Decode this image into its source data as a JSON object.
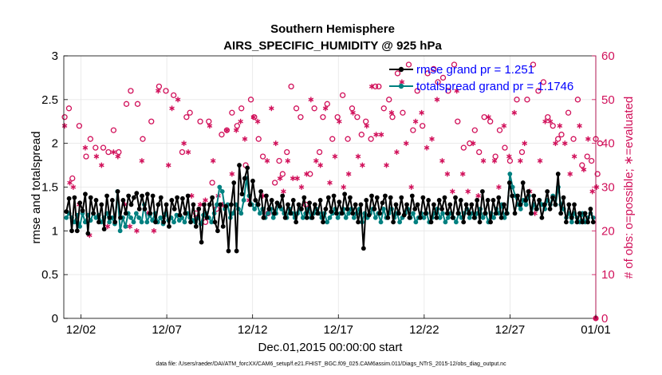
{
  "chart_data": {
    "type": "line",
    "title": "Southern Hemisphere",
    "subtitle": "AIRS_SPECIFIC_HUMIDITY @ 925 hPa",
    "xlabel": "Dec.01,2015 00:00:00 start",
    "ylabel": "rmse and totalspread",
    "y2label": "# of obs: o=possible; ∗=evaluated",
    "xlim": [
      0,
      31
    ],
    "ylim": [
      0,
      3
    ],
    "y2lim": [
      0,
      60
    ],
    "x_ticks": [
      {
        "x": 1,
        "label": "12/02"
      },
      {
        "x": 6,
        "label": "12/07"
      },
      {
        "x": 11,
        "label": "12/12"
      },
      {
        "x": 16,
        "label": "12/17"
      },
      {
        "x": 21,
        "label": "12/22"
      },
      {
        "x": 26,
        "label": "12/27"
      },
      {
        "x": 31,
        "label": "01/01"
      }
    ],
    "y_ticks": [
      "0",
      "0.5",
      "1",
      "1.5",
      "2",
      "2.5",
      "3"
    ],
    "y2_ticks": [
      "0",
      "10",
      "20",
      "30",
      "40",
      "50",
      "60"
    ],
    "legend_position": "top-right",
    "footnote": "data file: /Users/raeder/DAI/ATM_forcXX/CAM6_setup/f.e21.FHIST_BGC.f09_025.CAM6assim.011/Diags_NTrS_2015-12/obs_diag_output.nc",
    "series": [
      {
        "name": "rmse grand pr = 1.251",
        "axis": "left",
        "color": "#000000",
        "marker": "filled-circle",
        "values": [
          1.22,
          1.37,
          1.0,
          1.38,
          1.0,
          1.32,
          1.23,
          1.42,
          0.97,
          1.38,
          1.2,
          1.35,
          1.1,
          1.3,
          1.02,
          1.4,
          1.15,
          1.35,
          1.1,
          1.45,
          1.15,
          1.35,
          1.2,
          1.4,
          1.3,
          1.38,
          1.43,
          1.25,
          1.4,
          1.25,
          1.42,
          1.2,
          1.4,
          1.1,
          1.3,
          1.38,
          1.1,
          1.3,
          1.05,
          1.35,
          1.25,
          1.38,
          1.18,
          1.37,
          1.2,
          1.4,
          1.1,
          1.3,
          1.05,
          1.25,
          0.87,
          1.3,
          1.15,
          1.3,
          1.38,
          1.1,
          1.0,
          1.3,
          1.05,
          1.28,
          0.77,
          1.3,
          1.55,
          0.77,
          1.75,
          1.42,
          1.6,
          1.72,
          1.3,
          1.57,
          1.35,
          1.3,
          1.45,
          1.15,
          1.4,
          1.25,
          1.35,
          1.2,
          1.32,
          1.28,
          1.4,
          1.15,
          1.3,
          1.2,
          1.35,
          1.1,
          1.3,
          1.25,
          1.38,
          1.15,
          1.32,
          1.15,
          1.3,
          1.2,
          1.35,
          1.1,
          1.25,
          1.38,
          1.22,
          1.4,
          1.2,
          1.33,
          1.2,
          1.42,
          1.25,
          1.38,
          1.2,
          1.3,
          1.1,
          1.3,
          0.8,
          1.35,
          1.18,
          1.4,
          1.25,
          1.38,
          1.2,
          1.32,
          1.4,
          1.15,
          1.38,
          1.1,
          1.3,
          1.2,
          1.38,
          1.18,
          1.3,
          1.15,
          1.4,
          1.25,
          1.3,
          1.15,
          1.38,
          1.2,
          1.35,
          1.1,
          1.3,
          1.15,
          1.35,
          1.25,
          1.38,
          1.2,
          1.3,
          1.15,
          1.38,
          1.2,
          1.35,
          1.1,
          1.3,
          1.2,
          1.3,
          1.15,
          1.35,
          1.1,
          1.45,
          1.2,
          1.35,
          1.1,
          1.35,
          1.2,
          1.38,
          1.15,
          1.3,
          1.2,
          1.55,
          1.4,
          1.2,
          1.4,
          1.3,
          1.55,
          1.35,
          1.45,
          1.2,
          1.4,
          1.25,
          1.35,
          1.15,
          1.3,
          1.45,
          1.25,
          1.38,
          1.3,
          1.65,
          1.2,
          1.38,
          1.1,
          1.3,
          1.15,
          1.3,
          1.1,
          1.2,
          1.1,
          1.2,
          1.1,
          1.25,
          1.1
        ]
      },
      {
        "name": "totalspread grand pr = 1.1746",
        "axis": "left",
        "color": "#008080",
        "marker": "filled-circle",
        "values": [
          1.15,
          1.2,
          1.15,
          1.1,
          1.18,
          1.05,
          1.2,
          1.1,
          1.18,
          1.12,
          1.2,
          1.15,
          1.18,
          1.1,
          1.15,
          1.2,
          1.1,
          1.15,
          1.08,
          1.45,
          1.0,
          1.15,
          1.05,
          1.2,
          1.15,
          1.1,
          1.2,
          1.15,
          1.1,
          1.3,
          1.1,
          1.18,
          1.12,
          1.2,
          1.1,
          1.15,
          1.08,
          1.2,
          1.12,
          1.15,
          1.1,
          1.18,
          1.12,
          1.15,
          1.1,
          1.2,
          1.15,
          1.12,
          1.1,
          1.15,
          1.08,
          1.18,
          1.2,
          1.15,
          1.1,
          1.2,
          1.3,
          1.5,
          1.45,
          1.25,
          1.3,
          1.15,
          1.2,
          1.3,
          1.25,
          1.2,
          1.35,
          1.6,
          1.4,
          1.3,
          1.25,
          1.3,
          1.2,
          1.25,
          1.15,
          1.2,
          1.25,
          1.15,
          1.2,
          1.3,
          1.25,
          1.2,
          1.15,
          1.25,
          1.2,
          1.15,
          1.2,
          1.25,
          1.15,
          1.2,
          1.25,
          1.15,
          1.2,
          1.25,
          1.2,
          1.15,
          1.2,
          1.1,
          1.15,
          1.2,
          1.25,
          1.15,
          1.2,
          1.25,
          1.15,
          1.2,
          1.25,
          1.15,
          1.2,
          1.25,
          1.1,
          1.2,
          1.15,
          1.2,
          1.25,
          1.15,
          1.2,
          1.1,
          1.25,
          1.15,
          1.2,
          1.25,
          1.15,
          1.2,
          1.1,
          1.15,
          1.2,
          1.25,
          1.15,
          1.2,
          1.1,
          1.15,
          1.2,
          1.15,
          1.2,
          1.1,
          1.15,
          1.2,
          1.25,
          1.15,
          1.2,
          1.1,
          1.15,
          1.2,
          1.15,
          1.1,
          1.2,
          1.15,
          1.2,
          1.25,
          1.15,
          1.2,
          1.15,
          1.2,
          1.25,
          1.15,
          1.2,
          1.1,
          1.2,
          1.15,
          1.25,
          1.2,
          1.3,
          1.15,
          1.2,
          1.65,
          1.5,
          1.4,
          1.3,
          1.25,
          1.35,
          1.3,
          1.4,
          1.2,
          1.3,
          1.25,
          1.35,
          1.3,
          1.25,
          1.35,
          1.3,
          1.4,
          1.3,
          1.5,
          1.3,
          1.25,
          1.15,
          1.2,
          1.1,
          1.2,
          1.15,
          1.1,
          1.2,
          1.1,
          1.15,
          1.2,
          1.15
        ]
      }
    ],
    "obs_possible": {
      "name": "o=possible",
      "axis": "right",
      "color": "#d1105a",
      "marker": "open-circle",
      "points": [
        [
          0.05,
          46
        ],
        [
          0.3,
          48
        ],
        [
          0.5,
          32
        ],
        [
          0.9,
          44
        ],
        [
          1.3,
          37
        ],
        [
          1.55,
          41
        ],
        [
          1.85,
          39
        ],
        [
          2.3,
          39
        ],
        [
          2.6,
          38
        ],
        [
          2.9,
          43
        ],
        [
          3.2,
          38
        ],
        [
          3.65,
          49
        ],
        [
          3.9,
          52
        ],
        [
          4.3,
          49
        ],
        [
          4.6,
          41
        ],
        [
          5.1,
          45
        ],
        [
          5.55,
          53
        ],
        [
          5.95,
          52
        ],
        [
          6.4,
          51
        ],
        [
          6.9,
          38
        ],
        [
          7.15,
          46
        ],
        [
          7.35,
          47
        ],
        [
          7.7,
          24
        ],
        [
          7.95,
          45
        ],
        [
          8.25,
          22
        ],
        [
          8.45,
          45
        ],
        [
          8.65,
          31
        ],
        [
          8.9,
          25
        ],
        [
          9.2,
          42
        ],
        [
          9.5,
          43
        ],
        [
          9.8,
          47
        ],
        [
          10.1,
          44
        ],
        [
          10.35,
          48
        ],
        [
          10.6,
          35
        ],
        [
          10.9,
          50
        ],
        [
          11.1,
          46
        ],
        [
          11.35,
          41
        ],
        [
          11.6,
          37
        ],
        [
          11.9,
          24
        ],
        [
          12.3,
          31
        ],
        [
          12.55,
          36
        ],
        [
          12.75,
          33
        ],
        [
          13.0,
          38
        ],
        [
          13.25,
          53
        ],
        [
          13.55,
          48
        ],
        [
          13.8,
          46
        ],
        [
          14.1,
          26
        ],
        [
          14.35,
          33
        ],
        [
          14.6,
          48
        ],
        [
          14.9,
          38
        ],
        [
          15.1,
          46
        ],
        [
          15.35,
          49
        ],
        [
          15.65,
          41
        ],
        [
          15.95,
          46
        ],
        [
          16.25,
          51
        ],
        [
          16.55,
          41
        ],
        [
          16.8,
          48
        ],
        [
          17.1,
          46
        ],
        [
          17.35,
          42
        ],
        [
          17.6,
          45
        ],
        [
          17.9,
          41
        ],
        [
          18.15,
          53
        ],
        [
          18.35,
          53
        ],
        [
          18.65,
          48
        ],
        [
          18.95,
          50
        ],
        [
          19.15,
          46
        ],
        [
          19.45,
          56
        ],
        [
          19.75,
          47
        ],
        [
          20.1,
          58
        ],
        [
          20.35,
          43
        ],
        [
          20.6,
          52
        ],
        [
          20.9,
          44
        ],
        [
          21.2,
          56
        ],
        [
          21.55,
          57
        ],
        [
          21.8,
          54
        ],
        [
          22.1,
          55
        ],
        [
          22.4,
          52
        ],
        [
          22.75,
          58
        ],
        [
          22.95,
          45
        ],
        [
          23.3,
          39
        ],
        [
          23.65,
          40
        ],
        [
          23.95,
          43
        ],
        [
          24.2,
          38
        ],
        [
          24.5,
          46
        ],
        [
          24.85,
          45
        ],
        [
          25.15,
          37
        ],
        [
          25.4,
          43
        ],
        [
          25.7,
          39
        ],
        [
          26.0,
          36
        ],
        [
          26.4,
          50
        ],
        [
          26.7,
          38
        ],
        [
          27.0,
          50
        ],
        [
          27.35,
          58
        ],
        [
          27.65,
          52
        ],
        [
          27.95,
          54
        ],
        [
          28.2,
          46
        ],
        [
          28.5,
          44
        ],
        [
          28.8,
          41
        ],
        [
          29.0,
          42
        ],
        [
          29.4,
          47
        ],
        [
          29.7,
          41
        ],
        [
          29.95,
          50
        ],
        [
          30.2,
          35
        ],
        [
          30.5,
          37
        ],
        [
          30.75,
          36
        ],
        [
          31.0,
          41
        ],
        [
          31.25,
          40
        ],
        [
          31.1,
          33
        ]
      ]
    },
    "obs_evaluated": {
      "name": "∗=evaluated",
      "axis": "right",
      "color": "#d1105a",
      "marker": "asterisk",
      "points": [
        [
          0.05,
          44
        ],
        [
          0.35,
          31
        ],
        [
          0.55,
          30
        ],
        [
          0.9,
          26
        ],
        [
          1.25,
          39
        ],
        [
          1.5,
          19
        ],
        [
          1.9,
          37
        ],
        [
          2.2,
          35
        ],
        [
          2.55,
          21
        ],
        [
          2.9,
          38
        ],
        [
          3.15,
          37
        ],
        [
          3.55,
          26
        ],
        [
          3.85,
          21
        ],
        [
          4.25,
          20
        ],
        [
          4.55,
          36
        ],
        [
          4.9,
          24
        ],
        [
          5.25,
          20
        ],
        [
          5.5,
          52
        ],
        [
          5.8,
          23
        ],
        [
          6.1,
          35
        ],
        [
          6.3,
          48
        ],
        [
          6.65,
          50
        ],
        [
          7.0,
          40
        ],
        [
          7.25,
          38
        ],
        [
          7.45,
          28
        ],
        [
          7.7,
          23
        ],
        [
          7.95,
          26
        ],
        [
          8.25,
          27
        ],
        [
          8.5,
          44
        ],
        [
          8.7,
          36
        ],
        [
          9.0,
          28
        ],
        [
          9.25,
          26
        ],
        [
          9.5,
          43
        ],
        [
          9.8,
          33
        ],
        [
          10.05,
          43
        ],
        [
          10.3,
          45
        ],
        [
          10.55,
          41
        ],
        [
          10.8,
          27
        ],
        [
          11.05,
          46
        ],
        [
          11.3,
          45
        ],
        [
          11.6,
          28
        ],
        [
          11.85,
          36
        ],
        [
          12.1,
          48
        ],
        [
          12.35,
          40
        ],
        [
          12.6,
          32
        ],
        [
          12.8,
          29
        ],
        [
          13.05,
          36
        ],
        [
          13.35,
          32
        ],
        [
          13.6,
          32
        ],
        [
          13.85,
          30
        ],
        [
          14.15,
          33
        ],
        [
          14.4,
          50
        ],
        [
          14.7,
          36
        ],
        [
          14.95,
          35
        ],
        [
          15.25,
          48
        ],
        [
          15.5,
          31
        ],
        [
          15.8,
          37
        ],
        [
          16.05,
          45
        ],
        [
          16.3,
          30
        ],
        [
          16.6,
          33
        ],
        [
          16.85,
          47
        ],
        [
          17.15,
          37
        ],
        [
          17.4,
          35
        ],
        [
          17.65,
          44
        ],
        [
          17.95,
          53
        ],
        [
          18.2,
          42
        ],
        [
          18.5,
          42
        ],
        [
          18.8,
          35
        ],
        [
          19.1,
          47
        ],
        [
          19.4,
          38
        ],
        [
          19.7,
          54
        ],
        [
          19.95,
          40
        ],
        [
          20.25,
          30
        ],
        [
          20.5,
          45
        ],
        [
          20.85,
          47
        ],
        [
          21.15,
          39
        ],
        [
          21.45,
          41
        ],
        [
          21.75,
          50
        ],
        [
          22.05,
          36
        ],
        [
          22.35,
          33
        ],
        [
          22.65,
          29
        ],
        [
          22.9,
          52
        ],
        [
          23.25,
          33
        ],
        [
          23.55,
          29
        ],
        [
          23.85,
          40
        ],
        [
          24.15,
          28
        ],
        [
          24.45,
          36
        ],
        [
          24.75,
          46
        ],
        [
          25.1,
          36
        ],
        [
          25.35,
          30
        ],
        [
          25.65,
          44
        ],
        [
          25.95,
          37
        ],
        [
          26.25,
          47
        ],
        [
          26.6,
          36
        ],
        [
          26.85,
          40
        ],
        [
          27.15,
          29
        ],
        [
          27.45,
          24
        ],
        [
          27.75,
          36
        ],
        [
          28.05,
          45
        ],
        [
          28.35,
          45
        ],
        [
          28.65,
          40
        ],
        [
          28.9,
          44
        ],
        [
          29.2,
          40
        ],
        [
          29.5,
          33
        ],
        [
          29.75,
          37
        ],
        [
          30.05,
          44
        ],
        [
          30.3,
          34
        ],
        [
          30.55,
          41
        ],
        [
          30.8,
          29
        ],
        [
          31.05,
          30
        ]
      ]
    }
  }
}
